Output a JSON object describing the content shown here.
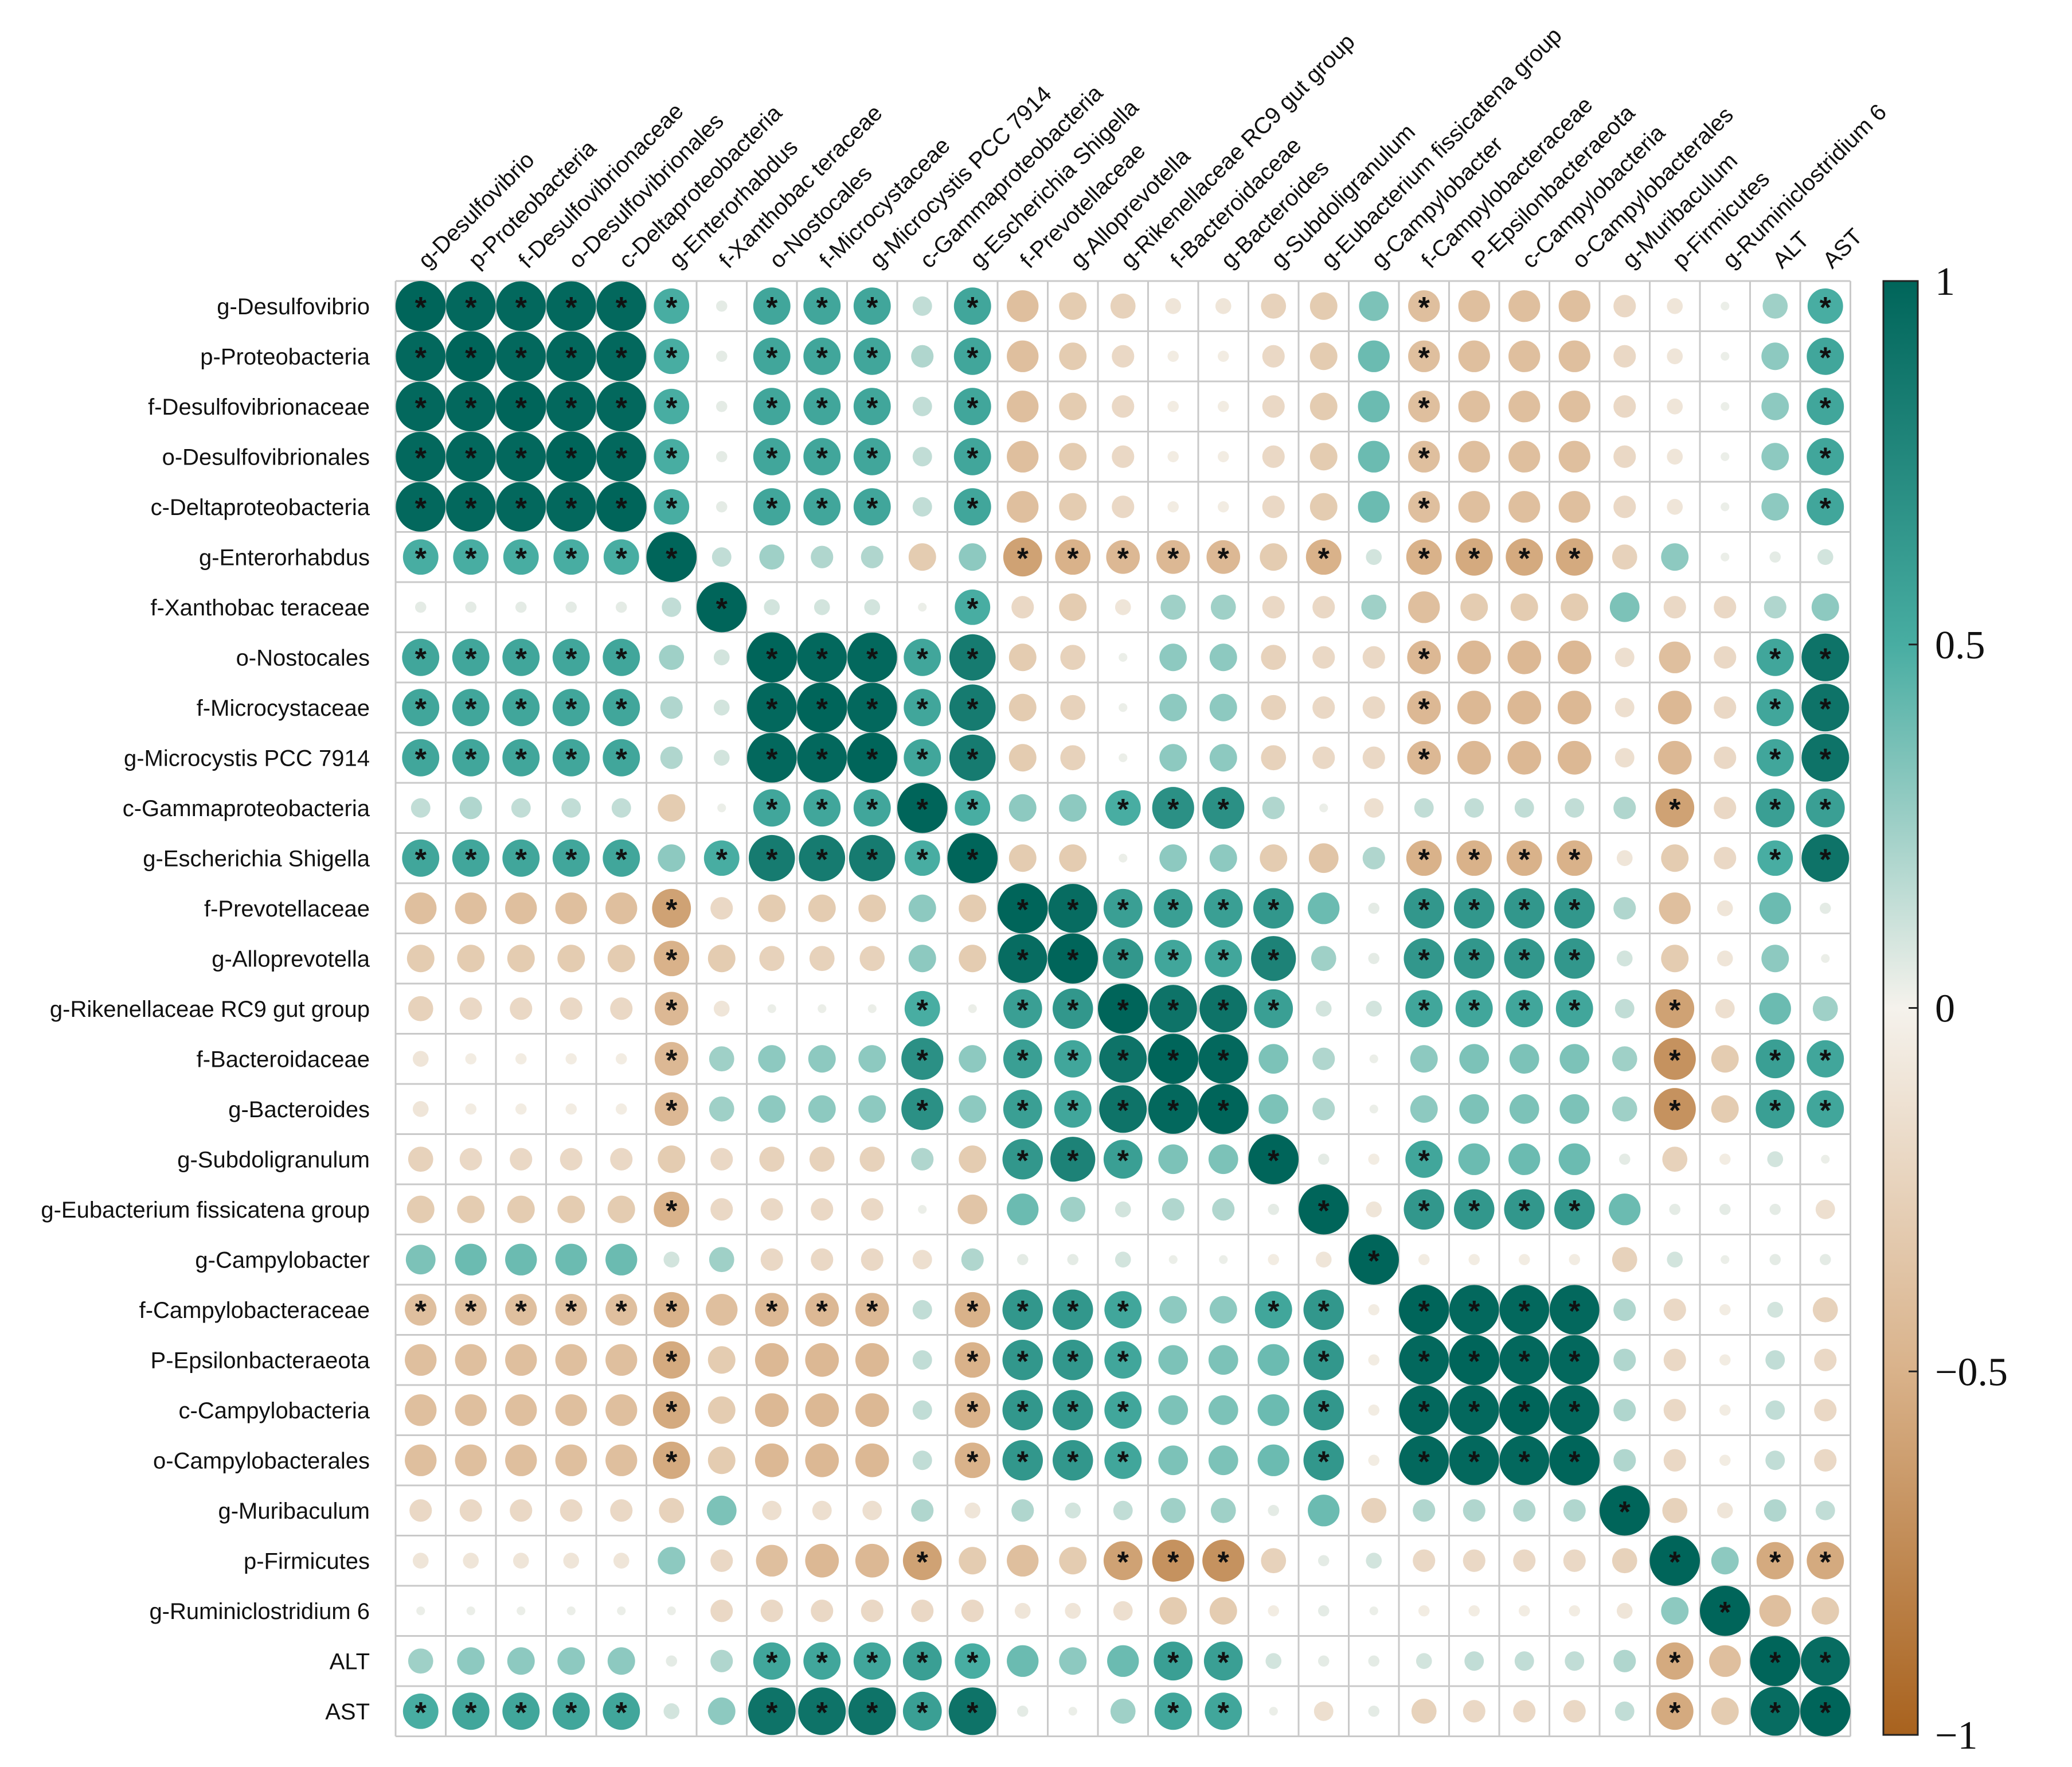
{
  "chart_data": {
    "type": "heatmap",
    "title": "",
    "variables": [
      "g-Desulfovibrio",
      "p-Proteobacteria",
      "f-Desulfovibrionaceae",
      "o-Desulfovibrionales",
      "c-Deltaproteobacteria",
      "g-Enterorhabdus",
      "f-Xanthobac teraceae",
      "o-Nostocales",
      "f-Microcystaceae",
      "g-Microcystis PCC 7914",
      "c-Gammaproteobacteria",
      "g-Escherichia Shigella",
      "f-Prevotellaceae",
      "g-Alloprevotella",
      "g-Rikenellaceae RC9 gut group",
      "f-Bacteroidaceae",
      "g-Bacteroides",
      "g-Subdoligranulum",
      "g-Eubacterium fissicatena group",
      "g-Campylobacter",
      "f-Campylobacteraceae",
      "P-Epsilonbacteraeota",
      "c-Campylobacteria",
      "o-Campylobacterales",
      "g-Muribaculum",
      "p-Firmicutes",
      "g-Ruminiclostridium 6",
      "ALT",
      "AST"
    ],
    "matrix": [
      [
        1.0,
        0.98,
        0.98,
        0.98,
        0.98,
        0.5,
        0.05,
        0.55,
        0.55,
        0.55,
        0.15,
        0.55,
        -0.4,
        -0.3,
        -0.25,
        -0.1,
        -0.1,
        -0.25,
        -0.3,
        0.35,
        -0.4,
        -0.4,
        -0.4,
        -0.4,
        -0.2,
        -0.1,
        0.03,
        0.25,
        0.5
      ],
      [
        0.98,
        1.0,
        0.98,
        0.98,
        0.98,
        0.5,
        0.05,
        0.55,
        0.55,
        0.55,
        0.2,
        0.55,
        -0.4,
        -0.3,
        -0.2,
        -0.05,
        -0.05,
        -0.2,
        -0.3,
        0.4,
        -0.4,
        -0.4,
        -0.4,
        -0.4,
        -0.2,
        -0.1,
        0.03,
        0.3,
        0.55
      ],
      [
        0.98,
        0.98,
        1.0,
        0.98,
        0.98,
        0.5,
        0.05,
        0.55,
        0.55,
        0.55,
        0.15,
        0.55,
        -0.4,
        -0.3,
        -0.2,
        -0.05,
        -0.05,
        -0.2,
        -0.3,
        0.4,
        -0.4,
        -0.4,
        -0.4,
        -0.4,
        -0.2,
        -0.1,
        0.03,
        0.3,
        0.55
      ],
      [
        0.98,
        0.98,
        0.98,
        1.0,
        0.98,
        0.5,
        0.05,
        0.55,
        0.55,
        0.55,
        0.15,
        0.55,
        -0.4,
        -0.3,
        -0.2,
        -0.05,
        -0.05,
        -0.2,
        -0.3,
        0.4,
        -0.4,
        -0.4,
        -0.4,
        -0.4,
        -0.2,
        -0.1,
        0.03,
        0.3,
        0.55
      ],
      [
        0.98,
        0.98,
        0.98,
        0.98,
        1.0,
        0.5,
        0.05,
        0.55,
        0.55,
        0.55,
        0.15,
        0.55,
        -0.4,
        -0.3,
        -0.2,
        -0.05,
        -0.05,
        -0.2,
        -0.3,
        0.4,
        -0.4,
        -0.4,
        -0.4,
        -0.4,
        -0.2,
        -0.1,
        0.03,
        0.3,
        0.55
      ],
      [
        0.5,
        0.5,
        0.5,
        0.5,
        0.5,
        1.0,
        0.15,
        0.25,
        0.2,
        0.2,
        -0.3,
        0.3,
        -0.6,
        -0.5,
        -0.45,
        -0.45,
        -0.45,
        -0.3,
        -0.5,
        0.1,
        -0.5,
        -0.55,
        -0.55,
        -0.55,
        -0.25,
        0.3,
        0.03,
        0.05,
        0.1
      ],
      [
        0.05,
        0.05,
        0.05,
        0.05,
        0.05,
        0.15,
        1.0,
        0.1,
        0.1,
        0.1,
        0.03,
        0.5,
        -0.2,
        -0.3,
        -0.1,
        0.25,
        0.25,
        -0.2,
        -0.2,
        0.25,
        -0.4,
        -0.3,
        -0.3,
        -0.3,
        0.35,
        -0.2,
        -0.2,
        0.2,
        0.3
      ],
      [
        0.55,
        0.55,
        0.55,
        0.55,
        0.55,
        0.25,
        0.1,
        1.0,
        0.98,
        0.98,
        0.55,
        0.85,
        -0.3,
        -0.25,
        0.03,
        0.3,
        0.3,
        -0.25,
        -0.2,
        -0.2,
        -0.45,
        -0.45,
        -0.45,
        -0.45,
        -0.15,
        -0.4,
        -0.2,
        0.55,
        0.9
      ],
      [
        0.55,
        0.55,
        0.55,
        0.55,
        0.55,
        0.2,
        0.1,
        0.98,
        1.0,
        0.98,
        0.55,
        0.85,
        -0.3,
        -0.25,
        0.03,
        0.3,
        0.3,
        -0.25,
        -0.2,
        -0.2,
        -0.45,
        -0.45,
        -0.45,
        -0.45,
        -0.15,
        -0.45,
        -0.2,
        0.55,
        0.9
      ],
      [
        0.55,
        0.55,
        0.55,
        0.55,
        0.55,
        0.2,
        0.1,
        0.98,
        0.98,
        1.0,
        0.55,
        0.85,
        -0.3,
        -0.25,
        0.03,
        0.3,
        0.3,
        -0.25,
        -0.2,
        -0.2,
        -0.45,
        -0.45,
        -0.45,
        -0.45,
        -0.15,
        -0.45,
        -0.2,
        0.55,
        0.9
      ],
      [
        0.15,
        0.2,
        0.15,
        0.15,
        0.15,
        -0.3,
        0.03,
        0.55,
        0.55,
        0.55,
        1.0,
        0.5,
        0.3,
        0.3,
        0.5,
        0.7,
        0.7,
        0.2,
        0.03,
        -0.15,
        0.15,
        0.15,
        0.15,
        0.15,
        0.2,
        -0.6,
        -0.2,
        0.6,
        0.6
      ],
      [
        0.55,
        0.55,
        0.55,
        0.55,
        0.55,
        0.3,
        0.5,
        0.85,
        0.85,
        0.85,
        0.5,
        1.0,
        -0.3,
        -0.3,
        0.03,
        0.3,
        0.3,
        -0.3,
        -0.35,
        0.2,
        -0.5,
        -0.5,
        -0.5,
        -0.5,
        -0.1,
        -0.3,
        -0.2,
        0.5,
        0.9
      ],
      [
        -0.4,
        -0.4,
        -0.4,
        -0.4,
        -0.4,
        -0.6,
        -0.2,
        -0.3,
        -0.3,
        -0.3,
        0.3,
        -0.3,
        1.0,
        0.95,
        0.6,
        0.6,
        0.6,
        0.65,
        0.4,
        0.05,
        0.65,
        0.65,
        0.65,
        0.65,
        0.2,
        -0.4,
        -0.1,
        0.4,
        0.05
      ],
      [
        -0.3,
        -0.3,
        -0.3,
        -0.3,
        -0.3,
        -0.5,
        -0.3,
        -0.25,
        -0.25,
        -0.25,
        0.3,
        -0.3,
        0.95,
        1.0,
        0.65,
        0.55,
        0.55,
        0.8,
        0.25,
        0.05,
        0.65,
        0.65,
        0.65,
        0.65,
        0.1,
        -0.3,
        -0.1,
        0.3,
        0.03
      ],
      [
        -0.25,
        -0.2,
        -0.2,
        -0.2,
        -0.2,
        -0.45,
        -0.1,
        0.03,
        0.03,
        0.03,
        0.5,
        0.03,
        0.6,
        0.65,
        1.0,
        0.9,
        0.9,
        0.6,
        0.1,
        0.1,
        0.55,
        0.55,
        0.55,
        0.55,
        0.15,
        -0.6,
        -0.15,
        0.4,
        0.25
      ],
      [
        -0.1,
        -0.05,
        -0.05,
        -0.05,
        -0.05,
        -0.45,
        0.25,
        0.3,
        0.3,
        0.3,
        0.7,
        0.3,
        0.6,
        0.55,
        0.9,
        1.0,
        0.98,
        0.35,
        0.2,
        0.03,
        0.3,
        0.35,
        0.35,
        0.35,
        0.25,
        -0.7,
        -0.3,
        0.6,
        0.55
      ],
      [
        -0.1,
        -0.05,
        -0.05,
        -0.05,
        -0.05,
        -0.45,
        0.25,
        0.3,
        0.3,
        0.3,
        0.7,
        0.3,
        0.6,
        0.55,
        0.9,
        0.98,
        1.0,
        0.35,
        0.2,
        0.03,
        0.3,
        0.35,
        0.35,
        0.35,
        0.25,
        -0.7,
        -0.3,
        0.6,
        0.55
      ],
      [
        -0.25,
        -0.2,
        -0.2,
        -0.2,
        -0.2,
        -0.3,
        -0.2,
        -0.25,
        -0.25,
        -0.25,
        0.2,
        -0.3,
        0.65,
        0.8,
        0.6,
        0.35,
        0.35,
        1.0,
        0.05,
        -0.05,
        0.55,
        0.4,
        0.4,
        0.4,
        0.05,
        -0.25,
        -0.05,
        0.1,
        0.03
      ],
      [
        -0.3,
        -0.3,
        -0.3,
        -0.3,
        -0.3,
        -0.5,
        -0.2,
        -0.2,
        -0.2,
        -0.2,
        0.03,
        -0.35,
        0.4,
        0.25,
        0.1,
        0.2,
        0.2,
        0.05,
        1.0,
        -0.1,
        0.65,
        0.65,
        0.65,
        0.65,
        0.4,
        0.05,
        0.05,
        0.05,
        -0.15
      ],
      [
        0.35,
        0.4,
        0.4,
        0.4,
        0.4,
        0.1,
        0.25,
        -0.2,
        -0.2,
        -0.2,
        -0.15,
        0.2,
        0.05,
        0.05,
        0.1,
        0.03,
        0.03,
        -0.05,
        -0.1,
        1.0,
        -0.05,
        -0.05,
        -0.05,
        -0.05,
        -0.25,
        0.1,
        0.03,
        0.05,
        0.05
      ],
      [
        -0.4,
        -0.4,
        -0.4,
        -0.4,
        -0.4,
        -0.5,
        -0.4,
        -0.45,
        -0.45,
        -0.45,
        0.15,
        -0.5,
        0.65,
        0.65,
        0.55,
        0.3,
        0.3,
        0.55,
        0.65,
        -0.05,
        1.0,
        0.98,
        0.98,
        0.98,
        0.2,
        -0.2,
        -0.05,
        0.1,
        -0.25
      ],
      [
        -0.4,
        -0.4,
        -0.4,
        -0.4,
        -0.4,
        -0.55,
        -0.3,
        -0.45,
        -0.45,
        -0.45,
        0.15,
        -0.5,
        0.65,
        0.65,
        0.55,
        0.35,
        0.35,
        0.4,
        0.65,
        -0.05,
        0.98,
        1.0,
        0.98,
        0.98,
        0.2,
        -0.2,
        -0.05,
        0.15,
        -0.2
      ],
      [
        -0.4,
        -0.4,
        -0.4,
        -0.4,
        -0.4,
        -0.55,
        -0.3,
        -0.45,
        -0.45,
        -0.45,
        0.15,
        -0.5,
        0.65,
        0.65,
        0.55,
        0.35,
        0.35,
        0.4,
        0.65,
        -0.05,
        0.98,
        0.98,
        1.0,
        0.98,
        0.2,
        -0.2,
        -0.05,
        0.15,
        -0.2
      ],
      [
        -0.4,
        -0.4,
        -0.4,
        -0.4,
        -0.4,
        -0.55,
        -0.3,
        -0.45,
        -0.45,
        -0.45,
        0.15,
        -0.5,
        0.65,
        0.65,
        0.55,
        0.35,
        0.35,
        0.4,
        0.65,
        -0.05,
        0.98,
        0.98,
        0.98,
        1.0,
        0.2,
        -0.2,
        -0.05,
        0.15,
        -0.2
      ],
      [
        -0.2,
        -0.2,
        -0.2,
        -0.2,
        -0.2,
        -0.25,
        0.35,
        -0.15,
        -0.15,
        -0.15,
        0.2,
        -0.1,
        0.2,
        0.1,
        0.15,
        0.25,
        0.25,
        0.05,
        0.4,
        -0.25,
        0.2,
        0.2,
        0.2,
        0.2,
        1.0,
        -0.25,
        -0.1,
        0.2,
        0.15
      ],
      [
        -0.1,
        -0.1,
        -0.1,
        -0.1,
        -0.1,
        0.3,
        -0.2,
        -0.4,
        -0.45,
        -0.45,
        -0.6,
        -0.3,
        -0.4,
        -0.3,
        -0.6,
        -0.7,
        -0.7,
        -0.25,
        0.05,
        0.1,
        -0.2,
        -0.2,
        -0.2,
        -0.2,
        -0.25,
        1.0,
        0.3,
        -0.55,
        -0.55
      ],
      [
        0.03,
        0.03,
        0.03,
        0.03,
        0.03,
        0.03,
        -0.2,
        -0.2,
        -0.2,
        -0.2,
        -0.2,
        -0.2,
        -0.1,
        -0.1,
        -0.15,
        -0.3,
        -0.3,
        -0.05,
        0.05,
        0.03,
        -0.05,
        -0.05,
        -0.05,
        -0.05,
        -0.1,
        0.3,
        1.0,
        -0.4,
        -0.3
      ],
      [
        0.25,
        0.3,
        0.3,
        0.3,
        0.3,
        0.05,
        0.2,
        0.55,
        0.55,
        0.55,
        0.6,
        0.5,
        0.4,
        0.3,
        0.4,
        0.6,
        0.6,
        0.1,
        0.05,
        0.05,
        0.1,
        0.15,
        0.15,
        0.15,
        0.2,
        -0.55,
        -0.4,
        1.0,
        0.95
      ],
      [
        0.5,
        0.55,
        0.55,
        0.55,
        0.55,
        0.1,
        0.3,
        0.9,
        0.9,
        0.9,
        0.6,
        0.9,
        0.05,
        0.03,
        0.25,
        0.55,
        0.55,
        0.03,
        -0.15,
        0.05,
        -0.25,
        -0.2,
        -0.2,
        -0.2,
        0.15,
        -0.55,
        -0.3,
        0.95,
        1.0
      ]
    ],
    "significance_marker": "*",
    "significant_pairs": [
      "g-Desulfovibrio|p-Proteobacteria",
      "g-Desulfovibrio|f-Desulfovibrionaceae",
      "g-Desulfovibrio|o-Desulfovibrionales",
      "g-Desulfovibrio|c-Deltaproteobacteria",
      "g-Desulfovibrio|g-Enterorhabdus",
      "g-Desulfovibrio|o-Nostocales",
      "g-Desulfovibrio|f-Microcystaceae",
      "g-Desulfovibrio|g-Microcystis PCC 7914",
      "g-Desulfovibrio|g-Escherichia Shigella",
      "g-Desulfovibrio|f-Campylobacteraceae",
      "g-Desulfovibrio|AST",
      "p-Proteobacteria|f-Desulfovibrionaceae",
      "p-Proteobacteria|o-Desulfovibrionales",
      "p-Proteobacteria|c-Deltaproteobacteria",
      "p-Proteobacteria|g-Enterorhabdus",
      "p-Proteobacteria|o-Nostocales",
      "p-Proteobacteria|f-Microcystaceae",
      "p-Proteobacteria|g-Microcystis PCC 7914",
      "p-Proteobacteria|g-Escherichia Shigella",
      "p-Proteobacteria|f-Campylobacteraceae",
      "p-Proteobacteria|AST",
      "f-Desulfovibrionaceae|o-Desulfovibrionales",
      "f-Desulfovibrionaceae|c-Deltaproteobacteria",
      "f-Desulfovibrionaceae|g-Enterorhabdus",
      "f-Desulfovibrionaceae|o-Nostocales",
      "f-Desulfovibrionaceae|f-Microcystaceae",
      "f-Desulfovibrionaceae|g-Microcystis PCC 7914",
      "f-Desulfovibrionaceae|g-Escherichia Shigella",
      "f-Desulfovibrionaceae|f-Campylobacteraceae",
      "f-Desulfovibrionaceae|AST",
      "o-Desulfovibrionales|c-Deltaproteobacteria",
      "o-Desulfovibrionales|g-Enterorhabdus",
      "o-Desulfovibrionales|o-Nostocales",
      "o-Desulfovibrionales|f-Microcystaceae",
      "o-Desulfovibrionales|g-Microcystis PCC 7914",
      "o-Desulfovibrionales|g-Escherichia Shigella",
      "o-Desulfovibrionales|f-Campylobacteraceae",
      "o-Desulfovibrionales|AST",
      "c-Deltaproteobacteria|g-Enterorhabdus",
      "c-Deltaproteobacteria|o-Nostocales",
      "c-Deltaproteobacteria|f-Microcystaceae",
      "c-Deltaproteobacteria|g-Microcystis PCC 7914",
      "c-Deltaproteobacteria|g-Escherichia Shigella",
      "c-Deltaproteobacteria|f-Campylobacteraceae",
      "c-Deltaproteobacteria|AST",
      "g-Enterorhabdus|f-Prevotellaceae",
      "g-Enterorhabdus|g-Alloprevotella",
      "g-Enterorhabdus|g-Rikenellaceae RC9 gut group",
      "g-Enterorhabdus|f-Bacteroidaceae",
      "g-Enterorhabdus|g-Bacteroides",
      "g-Enterorhabdus|g-Eubacterium fissicatena group",
      "g-Enterorhabdus|f-Campylobacteraceae",
      "g-Enterorhabdus|P-Epsilonbacteraeota",
      "g-Enterorhabdus|c-Campylobacteria",
      "g-Enterorhabdus|o-Campylobacterales",
      "f-Xanthobac teraceae|g-Escherichia Shigella",
      "o-Nostocales|f-Microcystaceae",
      "o-Nostocales|g-Microcystis PCC 7914",
      "o-Nostocales|c-Gammaproteobacteria",
      "o-Nostocales|g-Escherichia Shigella",
      "o-Nostocales|f-Campylobacteraceae",
      "o-Nostocales|ALT",
      "o-Nostocales|AST",
      "f-Microcystaceae|g-Microcystis PCC 7914",
      "f-Microcystaceae|c-Gammaproteobacteria",
      "f-Microcystaceae|g-Escherichia Shigella",
      "f-Microcystaceae|f-Campylobacteraceae",
      "f-Microcystaceae|ALT",
      "f-Microcystaceae|AST",
      "g-Microcystis PCC 7914|c-Gammaproteobacteria",
      "g-Microcystis PCC 7914|g-Escherichia Shigella",
      "g-Microcystis PCC 7914|f-Campylobacteraceae",
      "g-Microcystis PCC 7914|ALT",
      "g-Microcystis PCC 7914|AST",
      "c-Gammaproteobacteria|g-Escherichia Shigella",
      "c-Gammaproteobacteria|g-Rikenellaceae RC9 gut group",
      "c-Gammaproteobacteria|f-Bacteroidaceae",
      "c-Gammaproteobacteria|g-Bacteroides",
      "c-Gammaproteobacteria|p-Firmicutes",
      "c-Gammaproteobacteria|ALT",
      "c-Gammaproteobacteria|AST",
      "g-Escherichia Shigella|f-Campylobacteraceae",
      "g-Escherichia Shigella|P-Epsilonbacteraeota",
      "g-Escherichia Shigella|c-Campylobacteria",
      "g-Escherichia Shigella|o-Campylobacterales",
      "g-Escherichia Shigella|ALT",
      "g-Escherichia Shigella|AST",
      "f-Prevotellaceae|g-Alloprevotella",
      "f-Prevotellaceae|g-Rikenellaceae RC9 gut group",
      "f-Prevotellaceae|f-Bacteroidaceae",
      "f-Prevotellaceae|g-Bacteroides",
      "f-Prevotellaceae|g-Subdoligranulum",
      "f-Prevotellaceae|f-Campylobacteraceae",
      "f-Prevotellaceae|P-Epsilonbacteraeota",
      "f-Prevotellaceae|c-Campylobacteria",
      "f-Prevotellaceae|o-Campylobacterales",
      "g-Alloprevotella|g-Rikenellaceae RC9 gut group",
      "g-Alloprevotella|f-Bacteroidaceae",
      "g-Alloprevotella|g-Bacteroides",
      "g-Alloprevotella|g-Subdoligranulum",
      "g-Alloprevotella|f-Campylobacteraceae",
      "g-Alloprevotella|P-Epsilonbacteraeota",
      "g-Alloprevotella|c-Campylobacteria",
      "g-Alloprevotella|o-Campylobacterales",
      "g-Rikenellaceae RC9 gut group|f-Bacteroidaceae",
      "g-Rikenellaceae RC9 gut group|g-Bacteroides",
      "g-Rikenellaceae RC9 gut group|g-Subdoligranulum",
      "g-Rikenellaceae RC9 gut group|f-Campylobacteraceae",
      "g-Rikenellaceae RC9 gut group|P-Epsilonbacteraeota",
      "g-Rikenellaceae RC9 gut group|c-Campylobacteria",
      "g-Rikenellaceae RC9 gut group|o-Campylobacterales",
      "g-Rikenellaceae RC9 gut group|p-Firmicutes",
      "f-Bacteroidaceae|g-Bacteroides",
      "f-Bacteroidaceae|p-Firmicutes",
      "f-Bacteroidaceae|ALT",
      "f-Bacteroidaceae|AST",
      "g-Bacteroides|p-Firmicutes",
      "g-Bacteroides|ALT",
      "g-Bacteroides|AST",
      "g-Subdoligranulum|f-Campylobacteraceae",
      "g-Eubacterium fissicatena group|f-Campylobacteraceae",
      "g-Eubacterium fissicatena group|P-Epsilonbacteraeota",
      "g-Eubacterium fissicatena group|c-Campylobacteria",
      "g-Eubacterium fissicatena group|o-Campylobacterales",
      "f-Campylobacteraceae|P-Epsilonbacteraeota",
      "f-Campylobacteraceae|c-Campylobacteria",
      "f-Campylobacteraceae|o-Campylobacterales",
      "P-Epsilonbacteraeota|c-Campylobacteria",
      "P-Epsilonbacteraeota|o-Campylobacterales",
      "c-Campylobacteria|o-Campylobacterales",
      "p-Firmicutes|ALT",
      "p-Firmicutes|AST",
      "ALT|AST"
    ],
    "diagonal_significant": true,
    "colorbar": {
      "ticks": [
        1,
        0.5,
        0,
        -0.5,
        -1
      ],
      "tick_labels": [
        "1",
        "0.5",
        "0",
        "−0.5",
        "−1"
      ],
      "range": [
        -1,
        1
      ]
    },
    "colors": {
      "positive": "#00655a",
      "mid_positive": "#48ada2",
      "neutral": "#f5f2ec",
      "mid_negative": "#d9b28a",
      "negative": "#a8621e",
      "grid": "#c9c9c9",
      "border": "#222222"
    }
  }
}
